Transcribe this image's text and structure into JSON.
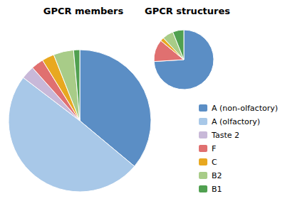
{
  "chart_data": [
    {
      "type": "pie",
      "title": "GPCR members",
      "categories": [
        "A (non-olfactory)",
        "A (olfactory)",
        "Taste 2",
        "F",
        "C",
        "B2",
        "B1"
      ],
      "values": [
        284,
        388,
        24,
        22,
        22,
        36,
        11
      ],
      "colors": [
        "#5B8EC5",
        "#A8C8E8",
        "#C8B8D8",
        "#E07070",
        "#E8A820",
        "#A8CC88",
        "#50A050"
      ],
      "legend": "right"
    },
    {
      "type": "pie",
      "title": "GPCR structures",
      "categories": [
        "A (non-olfactory)",
        "F",
        "C",
        "B2",
        "B1"
      ],
      "values": [
        37,
        6,
        1,
        3,
        3
      ],
      "colors": [
        "#5B8EC5",
        "#E07070",
        "#E8A820",
        "#A8CC88",
        "#50A050"
      ]
    }
  ]
}
